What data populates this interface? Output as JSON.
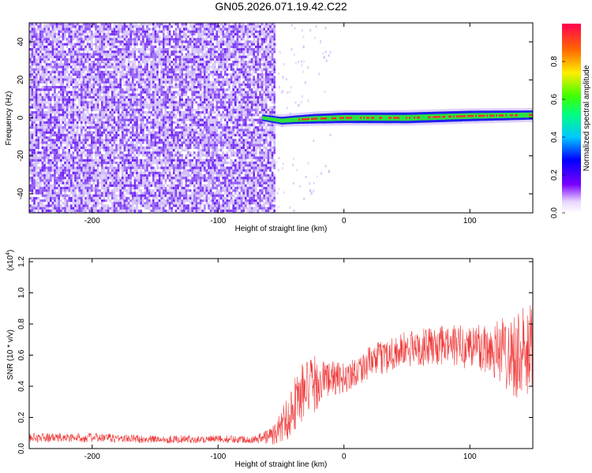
{
  "title": "GN05.2026.071.19.42.C22",
  "colors": {
    "series": "#ef3a3a",
    "scatter_main": "#6a1cf2",
    "scatter_light": "#c9b4f7",
    "ridge_core": "#ff2a2a",
    "ridge_mid": "#2ee83a",
    "ridge_edge": "#1a1aee"
  },
  "chart_data": [
    {
      "type": "heatmap",
      "xlabel": "Height of straight line (km)",
      "ylabel": "Frequency (Hz)",
      "xlim": [
        -250,
        150
      ],
      "ylim": [
        -50,
        50
      ],
      "x_ticks": [
        -200,
        -100,
        0,
        100
      ],
      "y_ticks": [
        -40,
        -20,
        0,
        20,
        40
      ],
      "colorbar": {
        "label": "Normalized spectral amplitude",
        "range": [
          0.0,
          1.0
        ],
        "ticks": [
          0.0,
          0.2,
          0.4,
          0.6,
          0.8
        ]
      },
      "noise_region_x": [
        -250,
        -55
      ],
      "signal_ridge": {
        "x": [
          -65,
          -50,
          -40,
          -25,
          0,
          50,
          100,
          150
        ],
        "frequency": [
          0.0,
          -1.5,
          -1.0,
          -0.5,
          0.0,
          0.0,
          1.0,
          1.5
        ],
        "amplitude": [
          0.25,
          0.45,
          0.55,
          0.75,
          0.9,
          0.95,
          0.9,
          0.7
        ]
      }
    },
    {
      "type": "line",
      "xlabel": "Height of straight line (km)",
      "ylabel": "SNR (10 * v/v)",
      "y_multiplier": "(x10",
      "y_multiplier_exp": "4",
      "xlim": [
        -250,
        150
      ],
      "ylim": [
        0,
        1.22
      ],
      "x_ticks": [
        -200,
        -100,
        0,
        100
      ],
      "y_ticks": [
        0.0,
        0.2,
        0.4,
        0.6,
        0.8,
        1.0,
        1.2
      ],
      "series": [
        {
          "x": [
            -250,
            -200,
            -150,
            -100,
            -70,
            -55,
            -45,
            -35,
            -25,
            -15,
            0,
            20,
            40,
            60,
            80,
            100,
            120,
            140,
            150
          ],
          "y": [
            0.07,
            0.07,
            0.06,
            0.06,
            0.06,
            0.09,
            0.2,
            0.35,
            0.4,
            0.45,
            0.45,
            0.55,
            0.62,
            0.65,
            0.66,
            0.66,
            0.64,
            0.6,
            0.58
          ],
          "noise_amp": [
            0.03,
            0.03,
            0.025,
            0.025,
            0.025,
            0.07,
            0.15,
            0.2,
            0.2,
            0.12,
            0.1,
            0.1,
            0.12,
            0.12,
            0.13,
            0.15,
            0.2,
            0.3,
            0.35
          ]
        }
      ]
    }
  ]
}
